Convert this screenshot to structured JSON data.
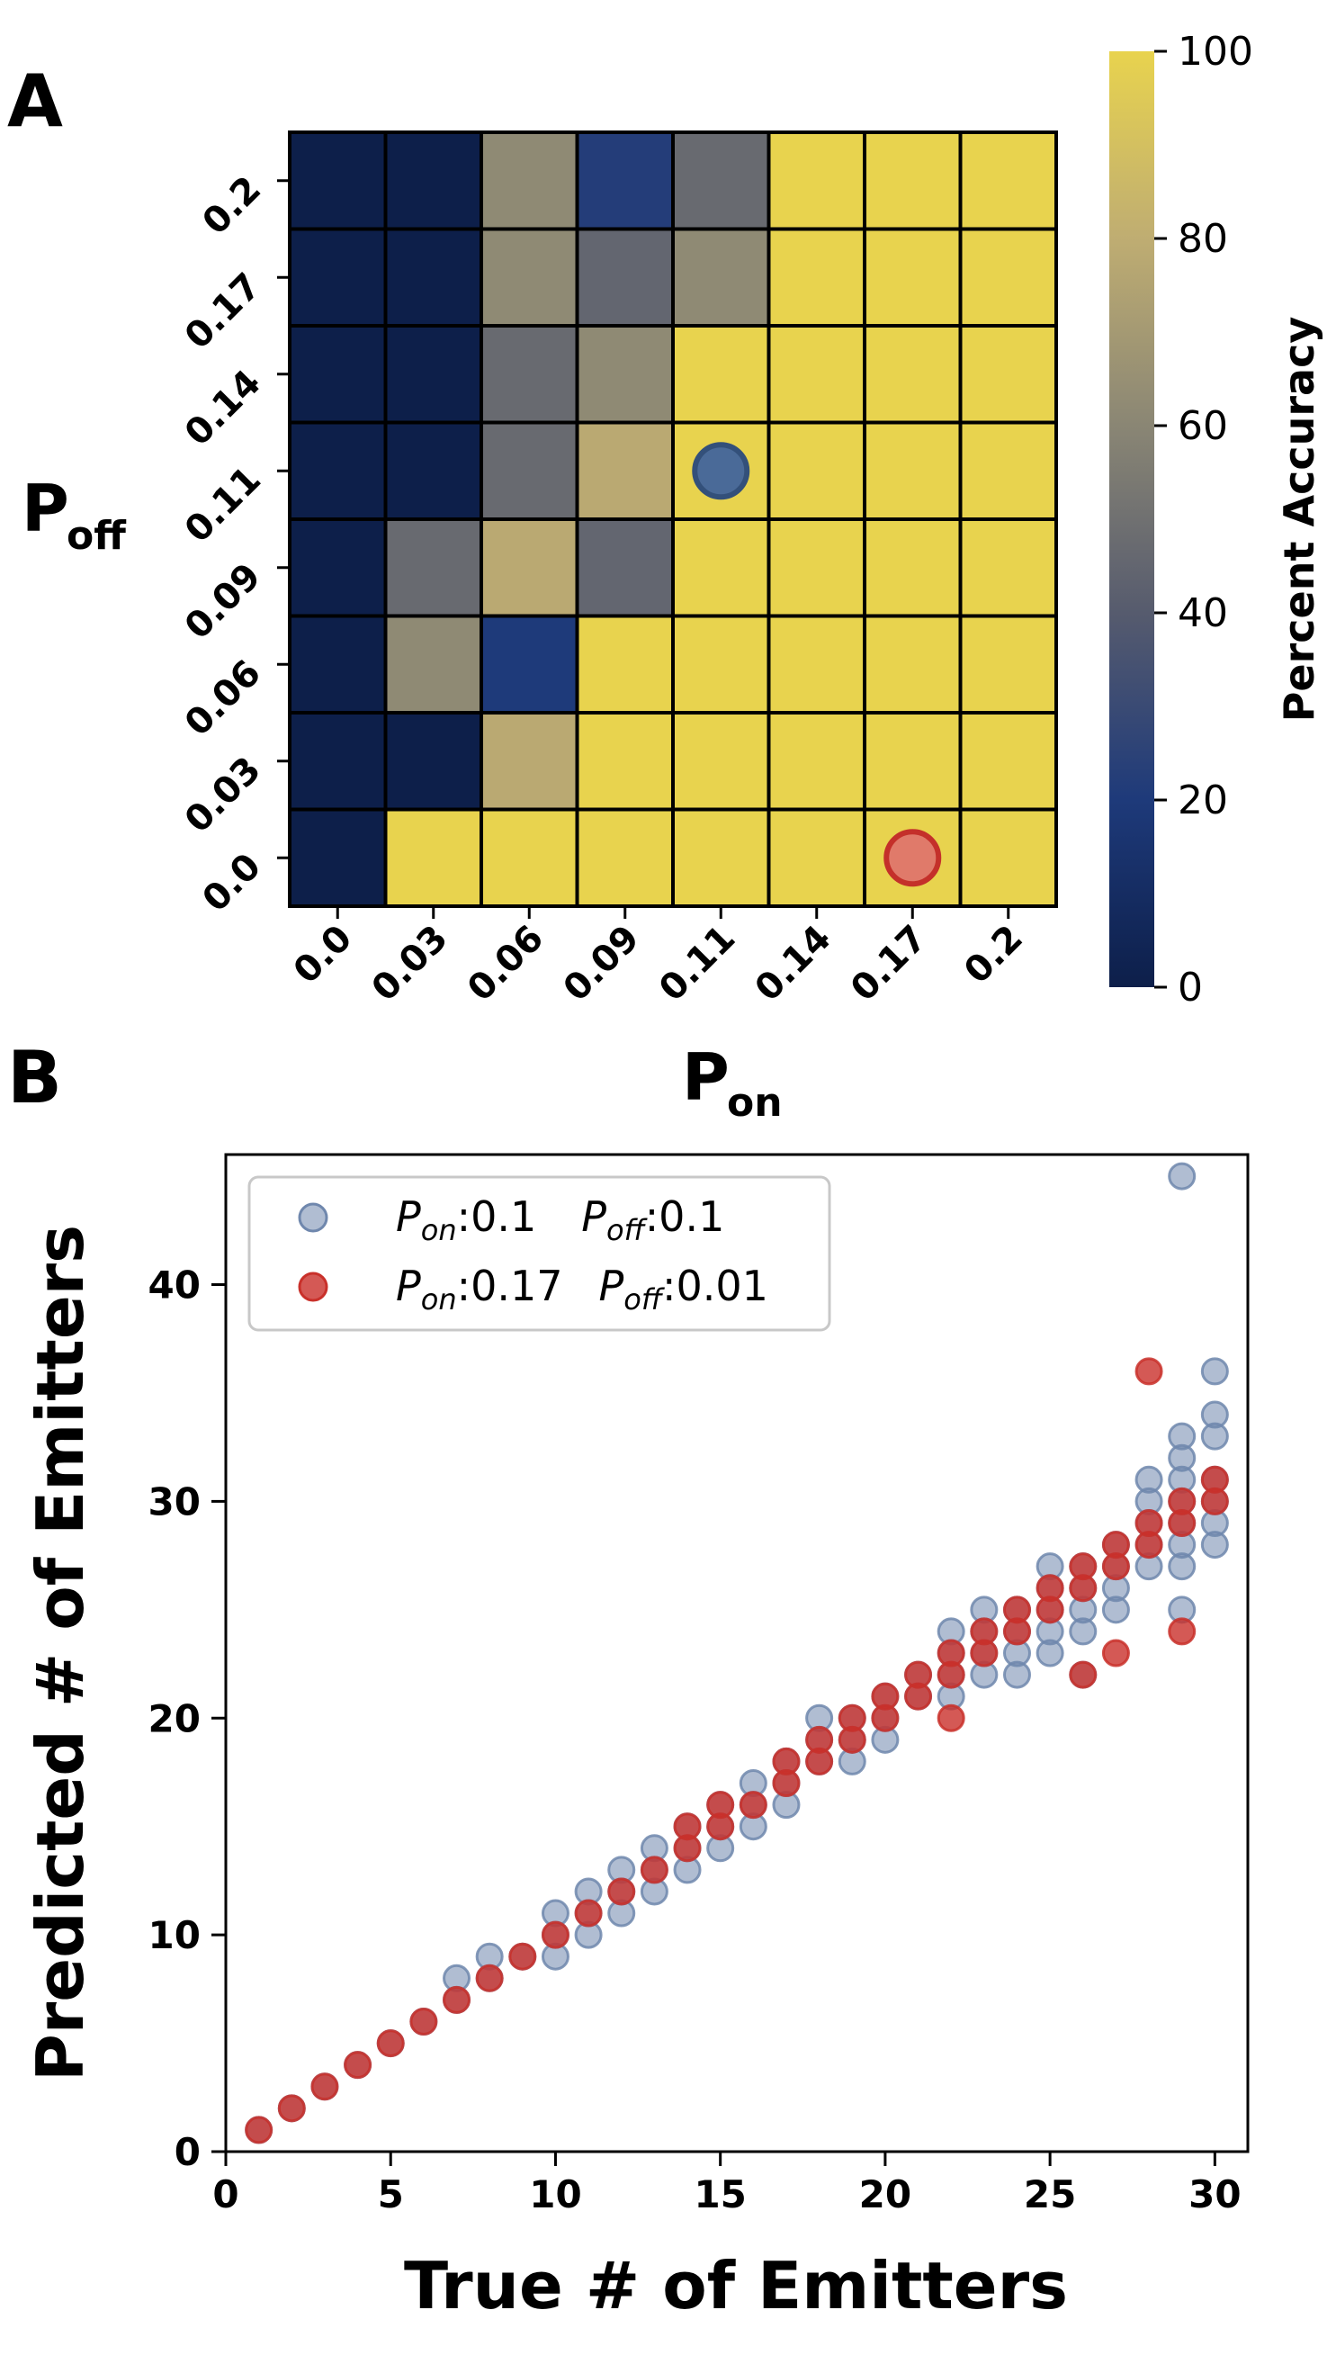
{
  "panels": [
    {
      "label": "A",
      "chart_data": {
        "type": "heatmap",
        "xlabel_main": "P",
        "xlabel_sub": "on",
        "ylabel_main": "P",
        "ylabel_sub": "off",
        "x_ticks": [
          "0.0",
          "0.03",
          "0.06",
          "0.09",
          "0.11",
          "0.14",
          "0.17",
          "0.2"
        ],
        "y_ticks": [
          "0.2",
          "0.17",
          "0.14",
          "0.11",
          "0.09",
          "0.06",
          "0.03",
          "0.0"
        ],
        "values": [
          [
            0,
            0,
            62,
            22,
            47,
            100,
            100,
            100
          ],
          [
            0,
            0,
            62,
            45,
            62,
            100,
            100,
            100
          ],
          [
            0,
            0,
            47,
            62,
            100,
            100,
            100,
            100
          ],
          [
            0,
            0,
            47,
            78,
            100,
            100,
            100,
            100
          ],
          [
            0,
            47,
            78,
            45,
            100,
            100,
            100,
            100
          ],
          [
            0,
            62,
            20,
            100,
            100,
            100,
            100,
            100
          ],
          [
            0,
            0,
            78,
            100,
            100,
            100,
            100,
            100
          ],
          [
            0,
            100,
            100,
            100,
            100,
            100,
            100,
            100
          ]
        ],
        "markers": [
          {
            "x": "0.11",
            "y": "0.11",
            "color": "#4a6a98",
            "edge": "#33507a"
          },
          {
            "x": "0.17",
            "y": "0.0",
            "color": "#e07a6a",
            "edge": "#c4302a"
          }
        ],
        "colorbar": {
          "label": "Percent Accuracy",
          "min": 0,
          "max": 100,
          "ticks": [
            "0",
            "20",
            "40",
            "60",
            "80",
            "100"
          ],
          "colormap": [
            "#0d1f4a",
            "#1e3a7a",
            "#565b6e",
            "#8a8674",
            "#bfad72",
            "#e8d34e"
          ]
        }
      }
    },
    {
      "label": "B",
      "chart_data": {
        "type": "scatter",
        "xlabel": "True # of Emitters",
        "ylabel": "Predicted # of Emitters",
        "xlim": [
          0,
          31
        ],
        "ylim": [
          0,
          46
        ],
        "x_ticks": [
          "0",
          "5",
          "10",
          "15",
          "20",
          "25",
          "30"
        ],
        "y_ticks": [
          "0",
          "10",
          "20",
          "30",
          "40"
        ],
        "legend_position": "top-left",
        "series": [
          {
            "legend": {
              "p1": "P",
              "s1": "on",
              "v1": ":0.1",
              "p2": "P",
              "s2": "off",
              "v2": ":0.1"
            },
            "color": "#6f87ad",
            "points": [
              [
                1,
                1
              ],
              [
                2,
                2
              ],
              [
                3,
                3
              ],
              [
                4,
                4
              ],
              [
                5,
                5
              ],
              [
                6,
                6
              ],
              [
                7,
                7
              ],
              [
                7,
                8
              ],
              [
                8,
                8
              ],
              [
                8,
                9
              ],
              [
                9,
                9
              ],
              [
                10,
                9
              ],
              [
                10,
                10
              ],
              [
                10,
                11
              ],
              [
                11,
                10
              ],
              [
                11,
                11
              ],
              [
                11,
                12
              ],
              [
                12,
                11
              ],
              [
                12,
                12
              ],
              [
                12,
                13
              ],
              [
                13,
                12
              ],
              [
                13,
                13
              ],
              [
                13,
                14
              ],
              [
                14,
                13
              ],
              [
                14,
                14
              ],
              [
                14,
                15
              ],
              [
                15,
                14
              ],
              [
                15,
                15
              ],
              [
                15,
                16
              ],
              [
                16,
                15
              ],
              [
                16,
                16
              ],
              [
                16,
                17
              ],
              [
                17,
                16
              ],
              [
                17,
                17
              ],
              [
                17,
                18
              ],
              [
                18,
                18
              ],
              [
                18,
                19
              ],
              [
                18,
                20
              ],
              [
                19,
                18
              ],
              [
                19,
                19
              ],
              [
                19,
                20
              ],
              [
                20,
                19
              ],
              [
                20,
                20
              ],
              [
                20,
                21
              ],
              [
                21,
                21
              ],
              [
                21,
                22
              ],
              [
                22,
                21
              ],
              [
                22,
                22
              ],
              [
                22,
                23
              ],
              [
                22,
                24
              ],
              [
                23,
                22
              ],
              [
                23,
                23
              ],
              [
                23,
                24
              ],
              [
                23,
                25
              ],
              [
                24,
                22
              ],
              [
                24,
                23
              ],
              [
                24,
                24
              ],
              [
                24,
                25
              ],
              [
                25,
                23
              ],
              [
                25,
                24
              ],
              [
                25,
                25
              ],
              [
                25,
                26
              ],
              [
                25,
                27
              ],
              [
                26,
                22
              ],
              [
                26,
                24
              ],
              [
                26,
                25
              ],
              [
                26,
                26
              ],
              [
                26,
                27
              ],
              [
                27,
                25
              ],
              [
                27,
                26
              ],
              [
                27,
                27
              ],
              [
                27,
                28
              ],
              [
                28,
                27
              ],
              [
                28,
                28
              ],
              [
                28,
                29
              ],
              [
                28,
                30
              ],
              [
                28,
                31
              ],
              [
                29,
                25
              ],
              [
                29,
                27
              ],
              [
                29,
                28
              ],
              [
                29,
                29
              ],
              [
                29,
                30
              ],
              [
                29,
                31
              ],
              [
                29,
                32
              ],
              [
                29,
                33
              ],
              [
                29,
                45
              ],
              [
                30,
                28
              ],
              [
                30,
                29
              ],
              [
                30,
                30
              ],
              [
                30,
                31
              ],
              [
                30,
                33
              ],
              [
                30,
                34
              ],
              [
                30,
                36
              ]
            ]
          },
          {
            "legend": {
              "p1": "P",
              "s1": "on",
              "v1": ":0.17",
              "p2": "P",
              "s2": "off",
              "v2": ":0.01"
            },
            "color": "#c9302a",
            "points": [
              [
                1,
                1
              ],
              [
                2,
                2
              ],
              [
                3,
                3
              ],
              [
                4,
                4
              ],
              [
                5,
                5
              ],
              [
                6,
                6
              ],
              [
                7,
                7
              ],
              [
                8,
                8
              ],
              [
                9,
                9
              ],
              [
                10,
                10
              ],
              [
                11,
                11
              ],
              [
                12,
                12
              ],
              [
                13,
                13
              ],
              [
                14,
                14
              ],
              [
                14,
                15
              ],
              [
                15,
                15
              ],
              [
                15,
                16
              ],
              [
                16,
                16
              ],
              [
                17,
                17
              ],
              [
                17,
                18
              ],
              [
                18,
                18
              ],
              [
                18,
                19
              ],
              [
                19,
                19
              ],
              [
                19,
                20
              ],
              [
                20,
                20
              ],
              [
                20,
                21
              ],
              [
                21,
                21
              ],
              [
                21,
                22
              ],
              [
                22,
                20
              ],
              [
                22,
                22
              ],
              [
                22,
                23
              ],
              [
                23,
                23
              ],
              [
                23,
                24
              ],
              [
                24,
                24
              ],
              [
                24,
                25
              ],
              [
                25,
                25
              ],
              [
                25,
                26
              ],
              [
                26,
                22
              ],
              [
                26,
                26
              ],
              [
                26,
                27
              ],
              [
                27,
                23
              ],
              [
                27,
                27
              ],
              [
                27,
                28
              ],
              [
                28,
                28
              ],
              [
                28,
                29
              ],
              [
                28,
                36
              ],
              [
                29,
                24
              ],
              [
                29,
                29
              ],
              [
                29,
                30
              ],
              [
                30,
                30
              ],
              [
                30,
                31
              ]
            ]
          }
        ]
      }
    }
  ]
}
